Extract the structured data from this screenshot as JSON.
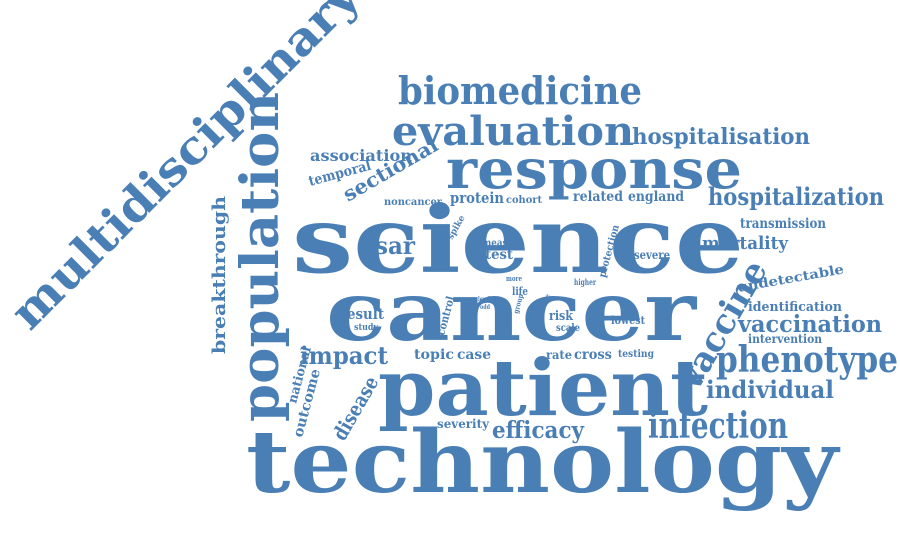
{
  "cloud": {
    "color": "#4a7fb5",
    "words": [
      "technology",
      "science",
      "cancer",
      "patient",
      "response",
      "multidisciplinary",
      "population",
      "evaluation",
      "biomedicine",
      "phenotype",
      "infection",
      "vaccine",
      "hospitalisation",
      "hospitalization",
      "vaccination",
      "individual",
      "impact",
      "sectional",
      "efficacy",
      "disease",
      "breakthrough",
      "mortality",
      "sar",
      "result",
      "association",
      "temporal",
      "protein",
      "noncancer",
      "cohort",
      "related",
      "england",
      "spike",
      "transmission",
      "measure",
      "test",
      "protection",
      "severe",
      "more",
      "higher",
      "life",
      "white",
      "level",
      "odd",
      "group",
      "control",
      "risk",
      "scale",
      "lowest",
      "undetectable",
      "identification",
      "intervention",
      "study",
      "national",
      "outcome",
      "topic",
      "case",
      "rate",
      "cross",
      "testing",
      "severity"
    ]
  }
}
